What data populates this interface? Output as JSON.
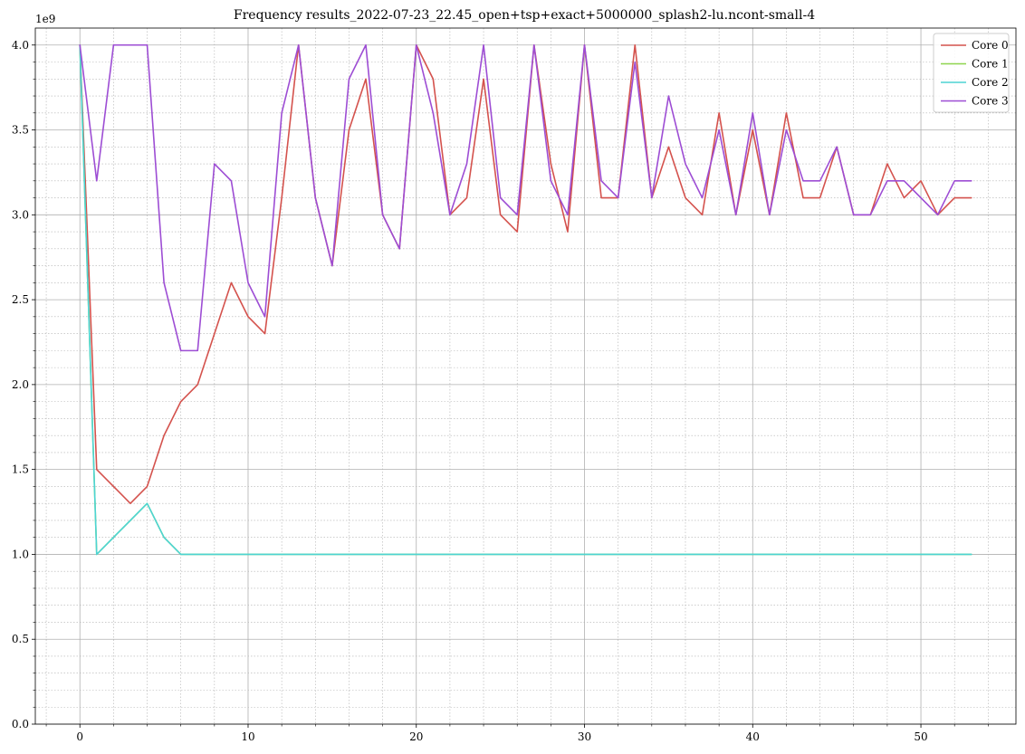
{
  "chart_data": {
    "type": "line",
    "title": "Frequency results_2022-07-23_22.45_open+tsp+exact+5000000_splash2-lu.ncont-small-4",
    "xlabel": "",
    "ylabel": "",
    "y_offset_label": "1e9",
    "xlim": [
      -2.65,
      55.65
    ],
    "ylim": [
      0,
      4.1
    ],
    "x_ticks": [
      0,
      10,
      20,
      30,
      40,
      50
    ],
    "x_tick_labels": [
      "0",
      "10",
      "20",
      "30",
      "40",
      "50"
    ],
    "y_ticks": [
      0,
      0.5,
      1.0,
      1.5,
      2.0,
      2.5,
      3.0,
      3.5,
      4.0
    ],
    "y_tick_labels": [
      "0.0",
      "0.5",
      "1.0",
      "1.5",
      "2.0",
      "2.5",
      "3.0",
      "3.5",
      "4.0"
    ],
    "grid": true,
    "legend_position": "top-right",
    "series": [
      {
        "name": "Core 0",
        "color": "#d4524d",
        "values": [
          4.0,
          1.5,
          1.4,
          1.3,
          1.4,
          1.7,
          1.9,
          2.0,
          2.3,
          2.6,
          2.4,
          2.3,
          3.1,
          4.0,
          3.1,
          2.7,
          3.5,
          3.8,
          3.0,
          2.8,
          4.0,
          3.8,
          3.0,
          3.1,
          3.8,
          3.0,
          2.9,
          4.0,
          3.3,
          2.9,
          4.0,
          3.1,
          3.1,
          4.0,
          3.1,
          3.4,
          3.1,
          3.0,
          3.6,
          3.0,
          3.5,
          3.0,
          3.6,
          3.1,
          3.1,
          3.4,
          3.0,
          3.0,
          3.3,
          3.1,
          3.2,
          3.0,
          3.1,
          3.1
        ]
      },
      {
        "name": "Core 1",
        "color": "#8ed44d",
        "values": [
          4.0,
          1.0,
          1.1,
          1.2,
          1.3,
          1.1,
          1.0,
          1.0,
          1.0,
          1.0,
          1.0,
          1.0,
          1.0,
          1.0,
          1.0,
          1.0,
          1.0,
          1.0,
          1.0,
          1.0,
          1.0,
          1.0,
          1.0,
          1.0,
          1.0,
          1.0,
          1.0,
          1.0,
          1.0,
          1.0,
          1.0,
          1.0,
          1.0,
          1.0,
          1.0,
          1.0,
          1.0,
          1.0,
          1.0,
          1.0,
          1.0,
          1.0,
          1.0,
          1.0,
          1.0,
          1.0,
          1.0,
          1.0,
          1.0,
          1.0,
          1.0,
          1.0,
          1.0,
          1.0
        ]
      },
      {
        "name": "Core 2",
        "color": "#4dd4d4",
        "values": [
          4.0,
          1.0,
          1.1,
          1.2,
          1.3,
          1.1,
          1.0,
          1.0,
          1.0,
          1.0,
          1.0,
          1.0,
          1.0,
          1.0,
          1.0,
          1.0,
          1.0,
          1.0,
          1.0,
          1.0,
          1.0,
          1.0,
          1.0,
          1.0,
          1.0,
          1.0,
          1.0,
          1.0,
          1.0,
          1.0,
          1.0,
          1.0,
          1.0,
          1.0,
          1.0,
          1.0,
          1.0,
          1.0,
          1.0,
          1.0,
          1.0,
          1.0,
          1.0,
          1.0,
          1.0,
          1.0,
          1.0,
          1.0,
          1.0,
          1.0,
          1.0,
          1.0,
          1.0,
          1.0
        ]
      },
      {
        "name": "Core 3",
        "color": "#9d4dd4",
        "values": [
          4.0,
          3.2,
          4.0,
          4.0,
          4.0,
          2.6,
          2.2,
          2.2,
          3.3,
          3.2,
          2.6,
          2.4,
          3.6,
          4.0,
          3.1,
          2.7,
          3.8,
          4.0,
          3.0,
          2.8,
          4.0,
          3.6,
          3.0,
          3.3,
          4.0,
          3.1,
          3.0,
          4.0,
          3.2,
          3.0,
          4.0,
          3.2,
          3.1,
          3.9,
          3.1,
          3.7,
          3.3,
          3.1,
          3.5,
          3.0,
          3.6,
          3.0,
          3.5,
          3.2,
          3.2,
          3.4,
          3.0,
          3.0,
          3.2,
          3.2,
          3.1,
          3.0,
          3.2,
          3.2
        ]
      }
    ]
  }
}
